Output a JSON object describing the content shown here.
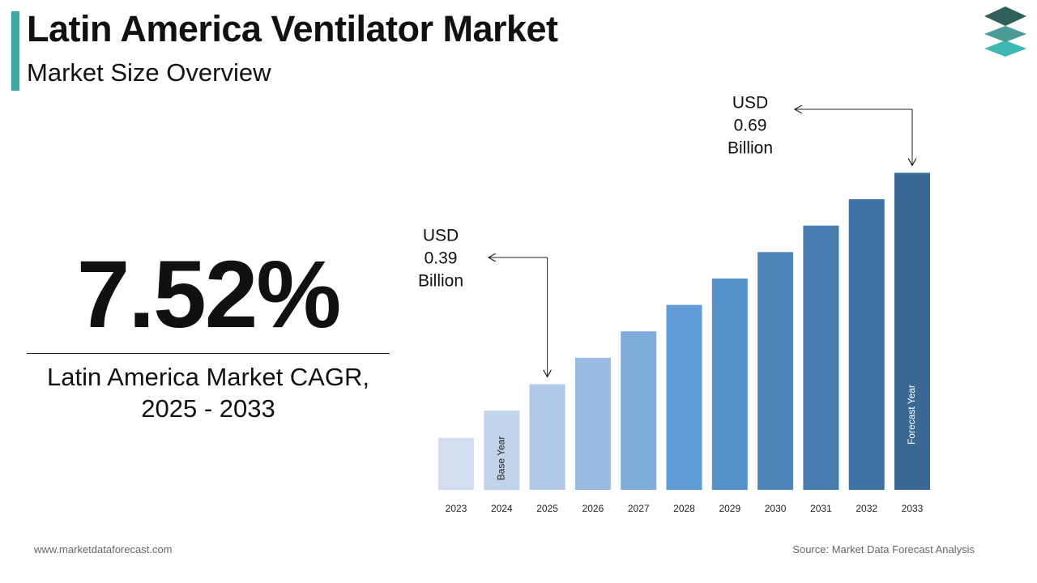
{
  "header": {
    "title": "Latin America Ventilator Market",
    "subtitle": "Market Size Overview"
  },
  "logo": {
    "icon": "stacked-layers-logo-icon",
    "colors": [
      "#2f5f5a",
      "#4a9a95",
      "#3fb8b3"
    ]
  },
  "cagr": {
    "value": "7.52%",
    "label_line1": "Latin America Market CAGR,",
    "label_line2": "2025 - 2033"
  },
  "footer": {
    "website": "www.marketdataforecast.com",
    "source": "Source: Market Data Forecast Analysis"
  },
  "chart_data": {
    "type": "bar",
    "title": "",
    "xlabel": "",
    "ylabel": "",
    "categories": [
      "2023",
      "2024",
      "2025",
      "2026",
      "2027",
      "2028",
      "2029",
      "2030",
      "2031",
      "2032",
      "2033"
    ],
    "values": [
      0.065,
      0.099,
      0.132,
      0.165,
      0.198,
      0.231,
      0.264,
      0.297,
      0.33,
      0.363,
      0.396
    ],
    "bar_colors": [
      "#d2deee",
      "#c3d4ea",
      "#b0c9e6",
      "#98bbe2",
      "#7eaddc",
      "#5f9cd6",
      "#5690c8",
      "#4e86ba",
      "#467cae",
      "#3f73a3",
      "#396a96"
    ],
    "ylim": [
      0,
      0.45
    ],
    "grid": false,
    "annotations": [
      {
        "category": "2025",
        "lines": [
          "USD",
          "0.39",
          "Billion"
        ]
      },
      {
        "category": "2033",
        "lines": [
          "USD",
          "0.69",
          "Billion"
        ]
      }
    ],
    "bar_labels": [
      {
        "category": "2024",
        "text": "Base Year",
        "color": "#222222"
      },
      {
        "category": "2033",
        "text": "Forecast Year",
        "color": "#ffffff"
      }
    ]
  }
}
